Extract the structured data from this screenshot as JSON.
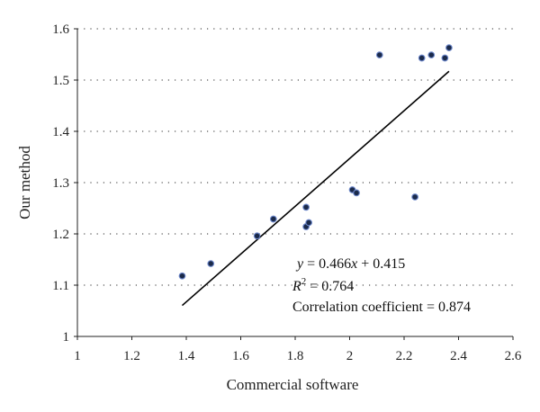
{
  "chart_data": {
    "type": "scatter",
    "xlabel": "Commercial software",
    "ylabel": "Our method",
    "xlim": [
      1,
      2.6
    ],
    "ylim": [
      1,
      1.6
    ],
    "x_ticks": [
      "1",
      "1.2",
      "1.4",
      "1.6",
      "1.8",
      "2",
      "2.2",
      "2.4",
      "2.6"
    ],
    "y_ticks": [
      "1",
      "1.1",
      "1.2",
      "1.3",
      "1.4",
      "1.5",
      "1.6"
    ],
    "grid": "horizontal dotted",
    "series": [
      {
        "points": [
          [
            1.385,
            1.118
          ],
          [
            1.49,
            1.142
          ],
          [
            1.66,
            1.196
          ],
          [
            1.72,
            1.229
          ],
          [
            1.84,
            1.252
          ],
          [
            1.84,
            1.214
          ],
          [
            1.85,
            1.222
          ],
          [
            2.01,
            1.286
          ],
          [
            2.025,
            1.28
          ],
          [
            2.11,
            1.549
          ],
          [
            2.24,
            1.272
          ],
          [
            2.265,
            1.543
          ],
          [
            2.3,
            1.549
          ],
          [
            2.35,
            1.543
          ],
          [
            2.365,
            1.563
          ]
        ]
      }
    ],
    "trendline": {
      "x_start": 1.385,
      "x_end": 2.365,
      "slope": 0.466,
      "intercept": 0.415
    },
    "annotation": {
      "eq_y": "y",
      "eq_eq": " = 0.466",
      "eq_x": "x",
      "eq_rest": " + 0.415",
      "r2_r": "R",
      "r2_sup": "2",
      "r2_rest": " = 0.764",
      "corr": "Correlation coefficient = 0.874"
    },
    "colors": {
      "marker": "#1b2a4a",
      "marker_outline": "#6b86c9"
    }
  }
}
